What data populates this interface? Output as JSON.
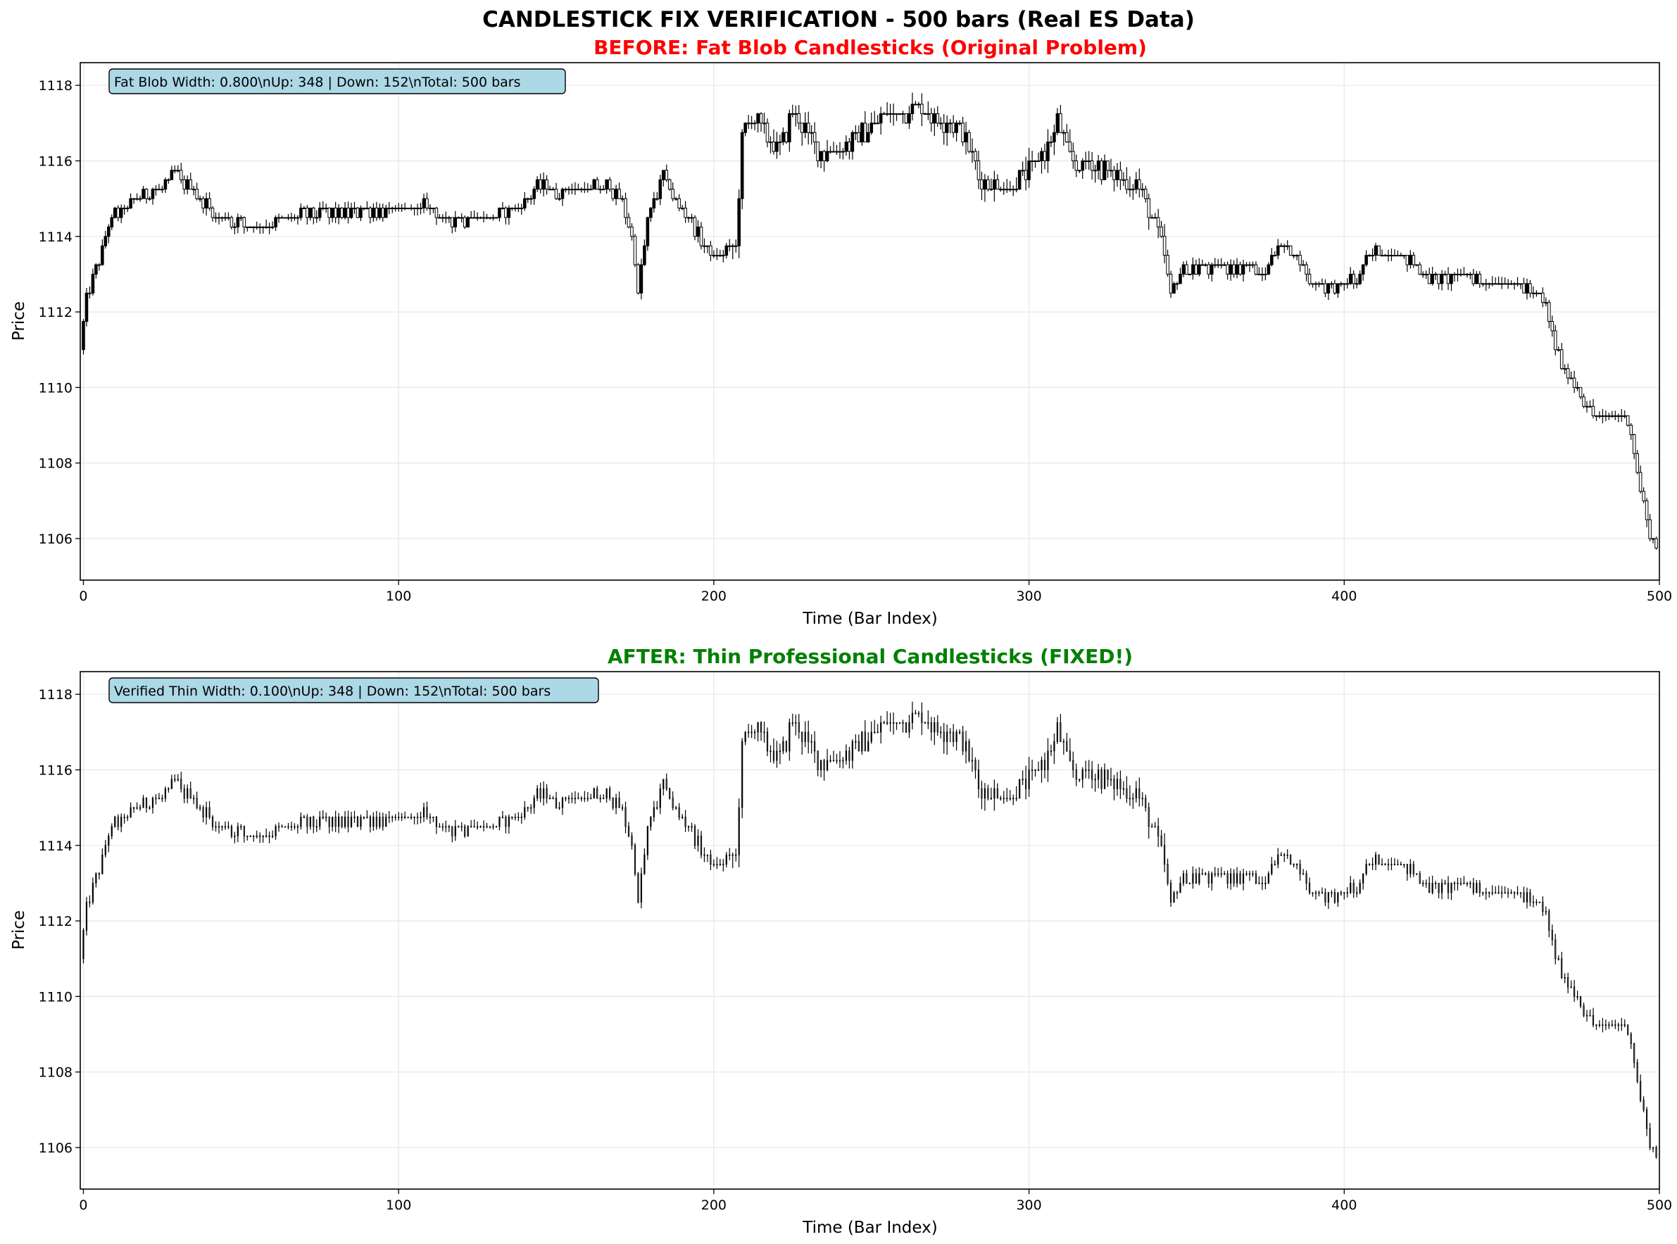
{
  "figure": {
    "suptitle": "CANDLESTICK FIX VERIFICATION - 500 bars (Real ES Data)"
  },
  "colors": {
    "before_title": "#ff0000",
    "after_title": "#008000",
    "candle": "#000000",
    "info_box_fill": "#add8e6",
    "grid": "#e6e6e6"
  },
  "chart_data": [
    {
      "type": "candlestick",
      "title": "BEFORE: Fat Blob Candlesticks (Original Problem)",
      "xlabel": "Time (Bar Index)",
      "ylabel": "Price",
      "xlim": [
        -1,
        500
      ],
      "ylim": [
        1104.9,
        1118.6
      ],
      "xticks": [
        0,
        100,
        200,
        300,
        400,
        500
      ],
      "yticks": [
        1106,
        1108,
        1110,
        1112,
        1114,
        1116,
        1118
      ],
      "grid": true,
      "candle_width": 0.8,
      "info_box": "Fat Blob Width: 0.800\\nUp: 348 | Down: 152\\nTotal: 500 bars",
      "up_count": 348,
      "down_count": 152,
      "total_bars": 500,
      "price_path": [
        [
          0,
          1111.0
        ],
        [
          2,
          1112.3
        ],
        [
          4,
          1113.0
        ],
        [
          6,
          1113.2
        ],
        [
          8,
          1114.0
        ],
        [
          10,
          1114.5
        ],
        [
          14,
          1114.7
        ],
        [
          18,
          1115.0
        ],
        [
          22,
          1115.1
        ],
        [
          26,
          1115.3
        ],
        [
          30,
          1115.6
        ],
        [
          34,
          1115.4
        ],
        [
          38,
          1115.0
        ],
        [
          42,
          1114.6
        ],
        [
          48,
          1114.4
        ],
        [
          54,
          1114.3
        ],
        [
          58,
          1114.2
        ],
        [
          62,
          1114.3
        ],
        [
          68,
          1114.6
        ],
        [
          80,
          1114.6
        ],
        [
          90,
          1114.7
        ],
        [
          100,
          1114.7
        ],
        [
          110,
          1114.8
        ],
        [
          115,
          1114.4
        ],
        [
          125,
          1114.5
        ],
        [
          135,
          1114.6
        ],
        [
          140,
          1114.9
        ],
        [
          145,
          1115.3
        ],
        [
          152,
          1115.2
        ],
        [
          160,
          1115.3
        ],
        [
          168,
          1115.3
        ],
        [
          172,
          1115.0
        ],
        [
          175,
          1114.0
        ],
        [
          177,
          1112.5
        ],
        [
          180,
          1114.5
        ],
        [
          185,
          1115.6
        ],
        [
          190,
          1114.8
        ],
        [
          195,
          1114.2
        ],
        [
          200,
          1113.5
        ],
        [
          205,
          1113.6
        ],
        [
          208,
          1113.8
        ],
        [
          210,
          1116.6
        ],
        [
          213,
          1117.2
        ],
        [
          218,
          1116.6
        ],
        [
          222,
          1116.3
        ],
        [
          226,
          1117.3
        ],
        [
          230,
          1116.8
        ],
        [
          235,
          1116.2
        ],
        [
          240,
          1116.3
        ],
        [
          245,
          1116.5
        ],
        [
          250,
          1116.9
        ],
        [
          255,
          1117.2
        ],
        [
          260,
          1117.3
        ],
        [
          265,
          1117.4
        ],
        [
          270,
          1117.2
        ],
        [
          275,
          1117.0
        ],
        [
          280,
          1116.8
        ],
        [
          285,
          1115.6
        ],
        [
          290,
          1115.3
        ],
        [
          295,
          1115.3
        ],
        [
          300,
          1115.6
        ],
        [
          305,
          1116.1
        ],
        [
          310,
          1117.0
        ],
        [
          315,
          1115.9
        ],
        [
          320,
          1115.9
        ],
        [
          325,
          1115.8
        ],
        [
          330,
          1115.5
        ],
        [
          335,
          1115.4
        ],
        [
          340,
          1114.5
        ],
        [
          343,
          1113.8
        ],
        [
          346,
          1112.5
        ],
        [
          350,
          1113.1
        ],
        [
          360,
          1113.2
        ],
        [
          370,
          1113.2
        ],
        [
          375,
          1112.9
        ],
        [
          380,
          1113.8
        ],
        [
          385,
          1113.6
        ],
        [
          390,
          1112.8
        ],
        [
          395,
          1112.7
        ],
        [
          400,
          1112.7
        ],
        [
          405,
          1112.9
        ],
        [
          410,
          1113.6
        ],
        [
          420,
          1113.5
        ],
        [
          425,
          1113.1
        ],
        [
          430,
          1112.8
        ],
        [
          440,
          1113.0
        ],
        [
          445,
          1112.8
        ],
        [
          450,
          1112.8
        ],
        [
          455,
          1112.7
        ],
        [
          460,
          1112.6
        ],
        [
          465,
          1112.2
        ],
        [
          468,
          1111.0
        ],
        [
          472,
          1110.3
        ],
        [
          476,
          1109.8
        ],
        [
          480,
          1109.2
        ],
        [
          485,
          1109.3
        ],
        [
          490,
          1109.2
        ],
        [
          492,
          1108.8
        ],
        [
          494,
          1107.7
        ],
        [
          496,
          1107.0
        ],
        [
          498,
          1106.0
        ],
        [
          499,
          1105.9
        ]
      ]
    },
    {
      "type": "candlestick",
      "title": "AFTER: Thin Professional Candlesticks (FIXED!)",
      "xlabel": "Time (Bar Index)",
      "ylabel": "Price",
      "xlim": [
        -1,
        500
      ],
      "ylim": [
        1104.9,
        1118.6
      ],
      "xticks": [
        0,
        100,
        200,
        300,
        400,
        500
      ],
      "yticks": [
        1106,
        1108,
        1110,
        1112,
        1114,
        1116,
        1118
      ],
      "grid": true,
      "candle_width": 0.1,
      "info_box": "Verified Thin Width: 0.100\\nUp: 348 | Down: 152\\nTotal: 500 bars",
      "up_count": 348,
      "down_count": 152,
      "total_bars": 500,
      "price_path": "same as BEFORE panel"
    }
  ]
}
